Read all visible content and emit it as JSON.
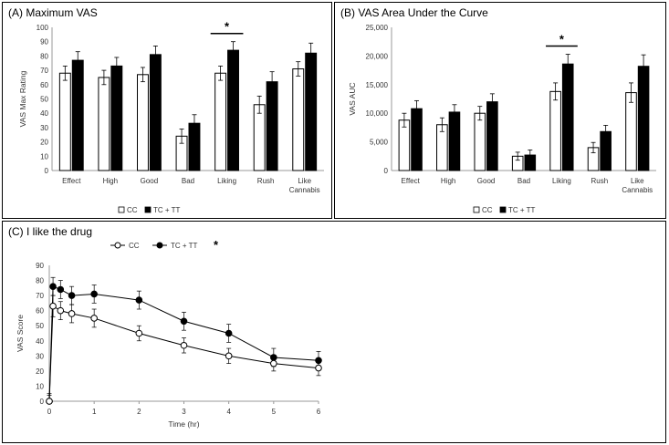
{
  "chart_data": [
    {
      "type": "bar",
      "title": "(A) Maximum VAS",
      "ylabel": "VAS Max Rating",
      "xlabel": "",
      "ylim": [
        0,
        100
      ],
      "yticks": [
        "0",
        "10",
        "20",
        "30",
        "40",
        "50",
        "60",
        "70",
        "80",
        "90",
        "100"
      ],
      "categories": [
        "Effect",
        "High",
        "Good",
        "Bad",
        "Liking",
        "Rush",
        "Like Cannabis"
      ],
      "series": [
        {
          "name": "CC",
          "color": "#ffffff",
          "values": [
            68,
            65,
            67,
            24,
            68,
            46,
            71
          ],
          "errors": [
            5,
            5,
            5,
            5,
            5,
            6,
            5
          ]
        },
        {
          "name": "TC + TT",
          "color": "#000000",
          "values": [
            77,
            73,
            81,
            33,
            84,
            62,
            82
          ],
          "errors": [
            6,
            6,
            6,
            6,
            6,
            7,
            7
          ]
        }
      ],
      "significance": {
        "category": "Liking",
        "label": "*"
      },
      "legend_position": "bottom",
      "grid": false
    },
    {
      "type": "bar",
      "title": "(B) VAS Area Under the Curve",
      "ylabel": "VAS AUC",
      "xlabel": "",
      "ylim": [
        0,
        25000
      ],
      "yticks": [
        "0",
        "5,000",
        "10,000",
        "15,000",
        "20,000",
        "25,000"
      ],
      "categories": [
        "Effect",
        "High",
        "Good",
        "Bad",
        "Liking",
        "Rush",
        "Like Cannabis"
      ],
      "series": [
        {
          "name": "CC",
          "color": "#ffffff",
          "values": [
            8800,
            8000,
            10000,
            2500,
            13800,
            4000,
            13600
          ],
          "errors": [
            1200,
            1200,
            1200,
            700,
            1500,
            900,
            1700
          ]
        },
        {
          "name": "TC + TT",
          "color": "#000000",
          "values": [
            10800,
            10200,
            12000,
            2700,
            18600,
            6800,
            18200
          ],
          "errors": [
            1400,
            1300,
            1400,
            900,
            1700,
            1100,
            2000
          ]
        }
      ],
      "significance": {
        "category": "Liking",
        "label": "*"
      },
      "legend_position": "bottom",
      "grid": false
    },
    {
      "type": "line",
      "title": "(C) I like the drug",
      "ylabel": "VAS Score",
      "xlabel": "Time (hr)",
      "xlim": [
        0,
        6
      ],
      "ylim": [
        0,
        90
      ],
      "xticks": [
        "0",
        "1",
        "2",
        "3",
        "4",
        "5",
        "6"
      ],
      "yticks": [
        "0",
        "10",
        "20",
        "30",
        "40",
        "50",
        "60",
        "70",
        "80",
        "90"
      ],
      "series": [
        {
          "name": "CC",
          "marker": "open-circle",
          "x": [
            0,
            0.083,
            0.25,
            0.5,
            1,
            2,
            3,
            4,
            5,
            6
          ],
          "y": [
            0,
            63,
            60,
            58,
            55,
            45,
            37,
            30,
            25,
            22
          ],
          "errors": [
            4,
            7,
            6,
            6,
            6,
            5,
            5,
            5,
            5,
            5
          ]
        },
        {
          "name": "TC + TT",
          "marker": "filled-circle",
          "x": [
            0,
            0.083,
            0.25,
            0.5,
            1,
            2,
            3,
            4,
            5,
            6
          ],
          "y": [
            0,
            76,
            74,
            70,
            71,
            67,
            53,
            45,
            29,
            27
          ],
          "errors": [
            5,
            6,
            6,
            6,
            6,
            6,
            6,
            6,
            6,
            6
          ]
        }
      ],
      "legend_mark": "*",
      "legend_position": "top",
      "grid": false
    }
  ]
}
